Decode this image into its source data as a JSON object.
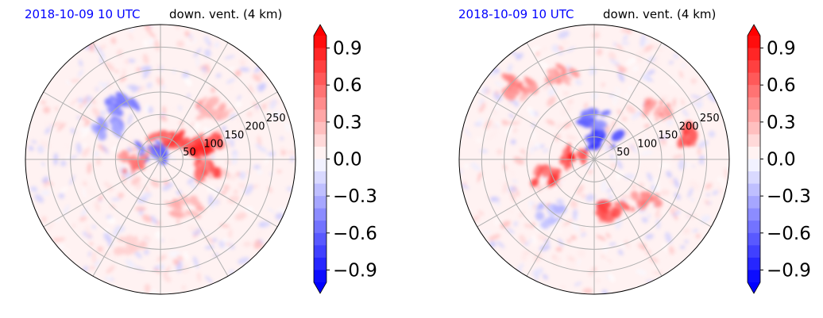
{
  "chart_data": [
    {
      "type": "heatmap",
      "projection": "polar",
      "title_date": "2018-10-09 10 UTC",
      "title_variable": "down. vent. (4 km)",
      "radial_ticks": [
        "50",
        "100",
        "150",
        "200",
        "250"
      ],
      "radial_range": [
        0,
        300
      ],
      "angular_gridlines": 12,
      "grid": true,
      "colorbar": {
        "ticks": [
          "0.9",
          "0.6",
          "0.3",
          "0.0",
          "−0.3",
          "−0.6",
          "−0.9"
        ],
        "tick_values": [
          0.9,
          0.6,
          0.3,
          0.0,
          -0.3,
          -0.6,
          -0.9
        ],
        "range": [
          -1.0,
          1.0
        ],
        "extend": "both",
        "colormap": "bwr",
        "levels": 20
      },
      "features": [
        {
          "r": 40,
          "theta": 80,
          "value": 0.9
        },
        {
          "r": 25,
          "theta": 140,
          "value": -0.8
        },
        {
          "r": 70,
          "theta": 30,
          "value": 0.9
        },
        {
          "r": 110,
          "theta": 20,
          "value": 0.9
        },
        {
          "r": 105,
          "theta": -10,
          "value": 0.8
        },
        {
          "r": 150,
          "theta": 125,
          "value": -0.6
        },
        {
          "r": 130,
          "theta": 150,
          "value": -0.5
        },
        {
          "r": 60,
          "theta": 190,
          "value": 0.6
        },
        {
          "r": 160,
          "theta": 45,
          "value": 0.4
        },
        {
          "r": 120,
          "theta": -60,
          "value": 0.4
        },
        {
          "r": 200,
          "theta": 250,
          "value": 0.2
        }
      ]
    },
    {
      "type": "heatmap",
      "projection": "polar",
      "title_date": "2018-10-09 10 UTC",
      "title_variable": "down. vent. (4 km)",
      "radial_ticks": [
        "50",
        "100",
        "150",
        "200",
        "250"
      ],
      "radial_range": [
        0,
        300
      ],
      "angular_gridlines": 12,
      "grid": true,
      "colorbar": {
        "ticks": [
          "0.9",
          "0.6",
          "0.3",
          "0.0",
          "−0.3",
          "−0.6",
          "−0.9"
        ],
        "tick_values": [
          0.9,
          0.6,
          0.3,
          0.0,
          -0.3,
          -0.6,
          -0.9
        ],
        "range": [
          -1.0,
          1.0
        ],
        "extend": "both",
        "colormap": "bwr",
        "levels": 20
      },
      "features": [
        {
          "r": 45,
          "theta": 170,
          "value": 0.95
        },
        {
          "r": 50,
          "theta": 60,
          "value": -0.9
        },
        {
          "r": 90,
          "theta": 90,
          "value": -0.7
        },
        {
          "r": 110,
          "theta": 200,
          "value": 0.8
        },
        {
          "r": 120,
          "theta": 290,
          "value": 0.8
        },
        {
          "r": 150,
          "theta": 320,
          "value": 0.6
        },
        {
          "r": 200,
          "theta": 15,
          "value": 0.8
        },
        {
          "r": 230,
          "theta": 135,
          "value": 0.6
        },
        {
          "r": 200,
          "theta": 110,
          "value": 0.5
        },
        {
          "r": 180,
          "theta": 40,
          "value": 0.5
        },
        {
          "r": 160,
          "theta": 230,
          "value": -0.3
        }
      ]
    }
  ]
}
